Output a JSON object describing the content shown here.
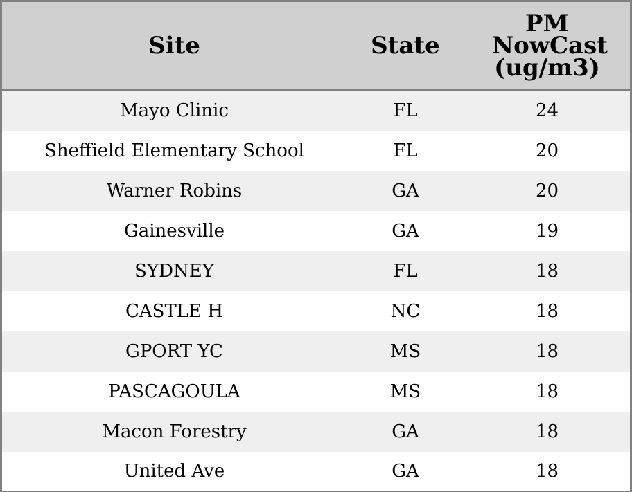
{
  "chart_data": {
    "type": "table",
    "columns": [
      "Site",
      "State",
      "PM NowCast (ug/m3)"
    ],
    "rows": [
      {
        "site": "Mayo Clinic",
        "state": "FL",
        "pm": "24"
      },
      {
        "site": "Sheffield Elementary School",
        "state": "FL",
        "pm": "20"
      },
      {
        "site": "Warner Robins",
        "state": "GA",
        "pm": "20"
      },
      {
        "site": "Gainesville",
        "state": "GA",
        "pm": "19"
      },
      {
        "site": "SYDNEY",
        "state": "FL",
        "pm": "18"
      },
      {
        "site": "CASTLE H",
        "state": "NC",
        "pm": "18"
      },
      {
        "site": "GPORT YC",
        "state": "MS",
        "pm": "18"
      },
      {
        "site": "PASCAGOULA",
        "state": "MS",
        "pm": "18"
      },
      {
        "site": "Macon Forestry",
        "state": "GA",
        "pm": "18"
      },
      {
        "site": "United Ave",
        "state": "GA",
        "pm": "18"
      }
    ]
  },
  "header_colors": {
    "header_bg": "#d0d0d0",
    "row_alt_bg": "#efefef",
    "border": "#808080"
  }
}
